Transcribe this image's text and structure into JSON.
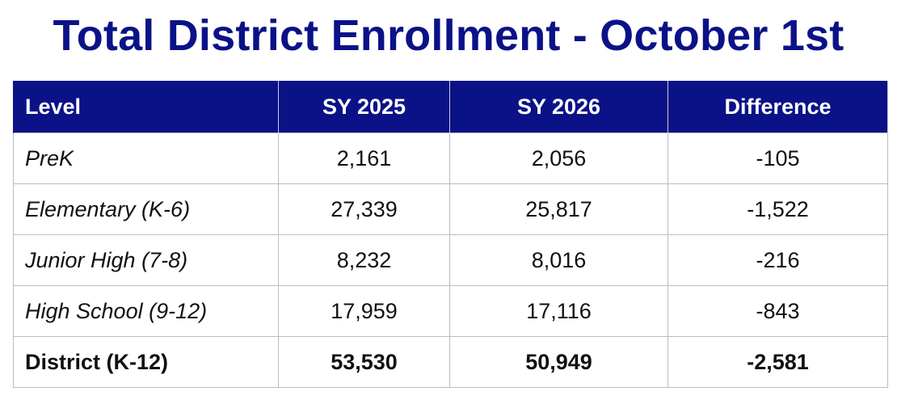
{
  "title": "Total District Enrollment - October 1st",
  "table": {
    "headers": {
      "level": "Level",
      "sy2025": "SY 2025",
      "sy2026": "SY 2026",
      "difference": "Difference"
    },
    "rows": [
      {
        "level": "PreK",
        "sy2025": "2,161",
        "sy2026": "2,056",
        "difference": "-105"
      },
      {
        "level": "Elementary (K-6)",
        "sy2025": "27,339",
        "sy2026": "25,817",
        "difference": "-1,522"
      },
      {
        "level": "Junior High (7-8)",
        "sy2025": "8,232",
        "sy2026": "8,016",
        "difference": "-216"
      },
      {
        "level": "High School (9-12)",
        "sy2025": "17,959",
        "sy2026": "17,116",
        "difference": "-843"
      }
    ],
    "total": {
      "level": "District (K-12)",
      "sy2025": "53,530",
      "sy2026": "50,949",
      "difference": "-2,581"
    }
  },
  "colors": {
    "header_background": "#0b1287",
    "title_text": "#0b1287",
    "header_text": "#ffffff",
    "grid_lines": "#b9bcc4"
  }
}
